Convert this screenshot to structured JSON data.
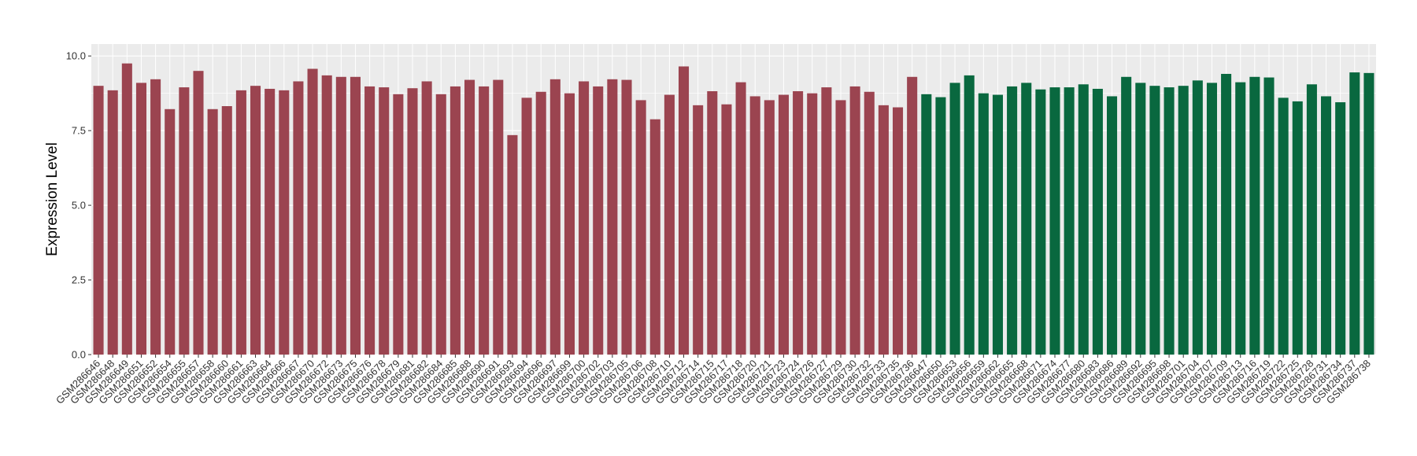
{
  "chart_data": {
    "type": "bar",
    "title": "",
    "xlabel": "",
    "ylabel": "Expression Level",
    "ylim": [
      0,
      10.4
    ],
    "yticks": [
      "0.0",
      "2.5",
      "5.0",
      "7.5",
      "10.0"
    ],
    "grid": true,
    "legend": "none",
    "colors": {
      "panel_background": "#ebebeb",
      "grid_major": "#ffffff",
      "group_1": "#9b4450",
      "group_2": "#09683f"
    },
    "categories": [
      "GSM286646",
      "GSM286648",
      "GSM286649",
      "GSM286651",
      "GSM286652",
      "GSM286654",
      "GSM286655",
      "GSM286657",
      "GSM286658",
      "GSM286660",
      "GSM286661",
      "GSM286663",
      "GSM286664",
      "GSM286666",
      "GSM286667",
      "GSM286670",
      "GSM286672",
      "GSM286673",
      "GSM286675",
      "GSM286676",
      "GSM286678",
      "GSM286679",
      "GSM286681",
      "GSM286682",
      "GSM286684",
      "GSM286685",
      "GSM286688",
      "GSM286690",
      "GSM286691",
      "GSM286693",
      "GSM286694",
      "GSM286696",
      "GSM286697",
      "GSM286699",
      "GSM286700",
      "GSM286702",
      "GSM286703",
      "GSM286705",
      "GSM286706",
      "GSM286708",
      "GSM286710",
      "GSM286712",
      "GSM286714",
      "GSM286715",
      "GSM286717",
      "GSM286718",
      "GSM286720",
      "GSM286721",
      "GSM286723",
      "GSM286724",
      "GSM286726",
      "GSM286727",
      "GSM286729",
      "GSM286730",
      "GSM286732",
      "GSM286733",
      "GSM286735",
      "GSM286736",
      "GSM286647",
      "GSM286650",
      "GSM286653",
      "GSM286656",
      "GSM286659",
      "GSM286662",
      "GSM286665",
      "GSM286668",
      "GSM286671",
      "GSM286674",
      "GSM286677",
      "GSM286680",
      "GSM286683",
      "GSM286686",
      "GSM286689",
      "GSM286692",
      "GSM286695",
      "GSM286698",
      "GSM286701",
      "GSM286704",
      "GSM286707",
      "GSM286709",
      "GSM286713",
      "GSM286716",
      "GSM286719",
      "GSM286722",
      "GSM286725",
      "GSM286728",
      "GSM286731",
      "GSM286734",
      "GSM286737",
      "GSM286738"
    ],
    "values": [
      9.0,
      8.85,
      9.75,
      9.1,
      9.22,
      8.22,
      8.95,
      9.5,
      8.22,
      8.32,
      8.85,
      9.0,
      8.9,
      8.85,
      9.15,
      9.57,
      9.35,
      9.3,
      9.3,
      8.98,
      8.95,
      8.72,
      8.92,
      9.15,
      8.72,
      8.98,
      9.2,
      8.98,
      9.2,
      7.35,
      8.6,
      8.8,
      9.22,
      8.75,
      9.15,
      8.98,
      9.22,
      9.2,
      8.52,
      7.88,
      8.7,
      9.65,
      8.35,
      8.82,
      8.38,
      9.12,
      8.65,
      8.52,
      8.7,
      8.82,
      8.75,
      8.95,
      8.52,
      8.98,
      8.8,
      8.35,
      8.28,
      9.3,
      8.72,
      8.62,
      9.1,
      9.35,
      8.75,
      8.7,
      8.98,
      9.1,
      8.88,
      8.95,
      8.95,
      9.05,
      8.9,
      8.65,
      9.3,
      9.1,
      9.0,
      8.95,
      9.0,
      9.18,
      9.1,
      9.4,
      9.12,
      9.3,
      9.28,
      8.6,
      8.48,
      9.05,
      8.65,
      8.45,
      9.45,
      9.43
    ],
    "groups": [
      1,
      1,
      1,
      1,
      1,
      1,
      1,
      1,
      1,
      1,
      1,
      1,
      1,
      1,
      1,
      1,
      1,
      1,
      1,
      1,
      1,
      1,
      1,
      1,
      1,
      1,
      1,
      1,
      1,
      1,
      1,
      1,
      1,
      1,
      1,
      1,
      1,
      1,
      1,
      1,
      1,
      1,
      1,
      1,
      1,
      1,
      1,
      1,
      1,
      1,
      1,
      1,
      1,
      1,
      1,
      1,
      1,
      1,
      2,
      2,
      2,
      2,
      2,
      2,
      2,
      2,
      2,
      2,
      2,
      2,
      2,
      2,
      2,
      2,
      2,
      2,
      2,
      2,
      2,
      2,
      2,
      2,
      2,
      2,
      2,
      2,
      2,
      2,
      2,
      2
    ]
  }
}
